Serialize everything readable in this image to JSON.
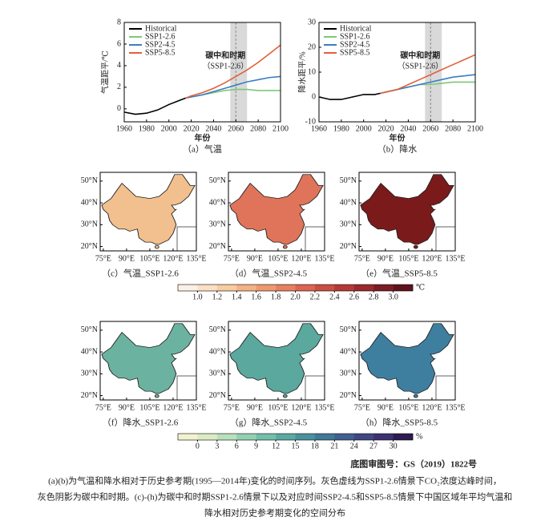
{
  "chart_data": [
    {
      "type": "line",
      "ylabel": "气温距平/℃",
      "xlabel": "年份",
      "subcaption": "（a）气温",
      "x": [
        1960,
        1970,
        1980,
        1990,
        2000,
        2010,
        2015,
        2020,
        2030,
        2040,
        2050,
        2060,
        2070,
        2080,
        2090,
        2100
      ],
      "xlim": [
        1960,
        2100
      ],
      "xticks": [
        1960,
        1980,
        2000,
        2020,
        2040,
        2060,
        2080,
        2100
      ],
      "ylim": [
        -1.2,
        8
      ],
      "yticks": [
        0,
        2,
        4,
        6,
        8
      ],
      "shade_x": [
        2055,
        2070
      ],
      "peak_x": 2060,
      "legend": "upper left",
      "annotations": [
        "碳中和时期",
        "（SSP1-2.6）"
      ],
      "series": [
        {
          "name": "Historical",
          "color": "#000000",
          "values": [
            -0.3,
            -0.5,
            -0.4,
            -0.1,
            0.4,
            0.8,
            1.0,
            null,
            null,
            null,
            null,
            null,
            null,
            null,
            null,
            null
          ]
        },
        {
          "name": "SSP1-2.6",
          "color": "#7ec87a",
          "values": [
            null,
            null,
            null,
            null,
            null,
            null,
            1.0,
            1.1,
            1.3,
            1.5,
            1.7,
            1.8,
            1.8,
            1.7,
            1.7,
            1.7
          ]
        },
        {
          "name": "SSP2-4.5",
          "color": "#3a7ec1",
          "values": [
            null,
            null,
            null,
            null,
            null,
            null,
            1.0,
            1.1,
            1.3,
            1.6,
            1.9,
            2.2,
            2.5,
            2.7,
            2.9,
            3.0
          ]
        },
        {
          "name": "SSP5-8.5",
          "color": "#e2603a",
          "values": [
            null,
            null,
            null,
            null,
            null,
            null,
            1.0,
            1.2,
            1.5,
            1.9,
            2.4,
            3.0,
            3.6,
            4.3,
            5.1,
            5.9
          ]
        }
      ]
    },
    {
      "type": "line",
      "ylabel": "降水距平/%",
      "xlabel": "年份",
      "subcaption": "（b）降水",
      "x": [
        1960,
        1970,
        1980,
        1990,
        2000,
        2010,
        2015,
        2020,
        2030,
        2040,
        2050,
        2060,
        2070,
        2080,
        2090,
        2100
      ],
      "xlim": [
        1960,
        2100
      ],
      "xticks": [
        1960,
        1980,
        2000,
        2020,
        2040,
        2060,
        2080,
        2100
      ],
      "ylim": [
        -10,
        30
      ],
      "yticks": [
        -10,
        0,
        10,
        20,
        30
      ],
      "shade_x": [
        2055,
        2070
      ],
      "peak_x": 2060,
      "legend": "upper left",
      "annotations": [
        "碳中和时期",
        "（SSP1-2.6）"
      ],
      "series": [
        {
          "name": "Historical",
          "color": "#000000",
          "values": [
            0,
            -1,
            -1,
            0,
            1,
            1,
            1.5,
            null,
            null,
            null,
            null,
            null,
            null,
            null,
            null,
            null
          ]
        },
        {
          "name": "SSP1-2.6",
          "color": "#7ec87a",
          "values": [
            null,
            null,
            null,
            null,
            null,
            null,
            1.5,
            2,
            3,
            4,
            5,
            5,
            5.5,
            6,
            6,
            6
          ]
        },
        {
          "name": "SSP2-4.5",
          "color": "#3a7ec1",
          "values": [
            null,
            null,
            null,
            null,
            null,
            null,
            1.5,
            2,
            3,
            4,
            5,
            6,
            7,
            8,
            8.5,
            9
          ]
        },
        {
          "name": "SSP5-8.5",
          "color": "#e2603a",
          "values": [
            null,
            null,
            null,
            null,
            null,
            null,
            1.5,
            2,
            3,
            5,
            7,
            9,
            11,
            13,
            15,
            17
          ]
        }
      ]
    }
  ],
  "maps": {
    "lon_range": [
      73,
      135
    ],
    "lat_range": [
      18,
      54
    ],
    "xticks": [
      {
        "value": 75,
        "label": "75°E"
      },
      {
        "value": 90,
        "label": "90°E"
      },
      {
        "value": 105,
        "label": "105°E"
      },
      {
        "value": 120,
        "label": "120°E"
      },
      {
        "value": 135,
        "label": "135°E"
      }
    ],
    "yticks": [
      {
        "value": 20,
        "label": "20°N"
      },
      {
        "value": 30,
        "label": "30°N"
      },
      {
        "value": 40,
        "label": "40°N"
      },
      {
        "value": 50,
        "label": "50°N"
      }
    ],
    "panels": [
      {
        "label": "（c）气温_SSP1-2.6",
        "color": "#f2c08e"
      },
      {
        "label": "（d）气温_SSP2-4.5",
        "color": "#e0745a"
      },
      {
        "label": "（e）气温_SSP5-8.5",
        "color": "#7a1a1a"
      },
      {
        "label": "（f）降水_SSP1-2.6",
        "color": "#6bb3a0"
      },
      {
        "label": "（g）降水_SSP2-4.5",
        "color": "#5aa89e"
      },
      {
        "label": "（h）降水_SSP5-8.5",
        "color": "#3e7fa0"
      }
    ]
  },
  "colorbars": [
    {
      "unit": "℃",
      "ticks": [
        {
          "value": 1,
          "label": "1.0"
        },
        1.2,
        1.4,
        1.6,
        1.8,
        {
          "value": 2,
          "label": "2.0"
        },
        2.2,
        2.4,
        2.6,
        2.8,
        {
          "value": 3,
          "label": "3.0"
        }
      ],
      "colors": [
        "#fdf0e4",
        "#fbe0c4",
        "#f8cba1",
        "#f4b383",
        "#ef9a6c",
        "#e88060",
        "#dc6552",
        "#cc4d43",
        "#b53a37",
        "#9a2a2c",
        "#7c1d24",
        "#5e141c"
      ]
    },
    {
      "unit": "%",
      "ticks": [
        0,
        3,
        6,
        9,
        12,
        15,
        18,
        21,
        24,
        27,
        30
      ],
      "colors": [
        "#f4f3d0",
        "#d9ecc4",
        "#b8e0bc",
        "#93d0b3",
        "#72bfaa",
        "#5aa9a2",
        "#4a919d",
        "#437897",
        "#42608e",
        "#404882",
        "#3d3070",
        "#2e1b4f"
      ]
    }
  ],
  "map_approval": "底图审图号：GS（2019）1822号",
  "caption": {
    "lines": [
      "(a)(b)为气温和降水相对于历史参考期(1995—2014年)变化的时间序列。灰色虚线为SSP1-2.6情景下CO₂浓度达峰时间，",
      "灰色阴影为碳中和时期。(c)-(h)为碳中和时期SSP1-2.6情景下以及对应时间SSP2-4.5和SSP5-8.5情景下中国区域年平均气温和",
      "降水相对历史参考期变化的空间分布"
    ]
  }
}
